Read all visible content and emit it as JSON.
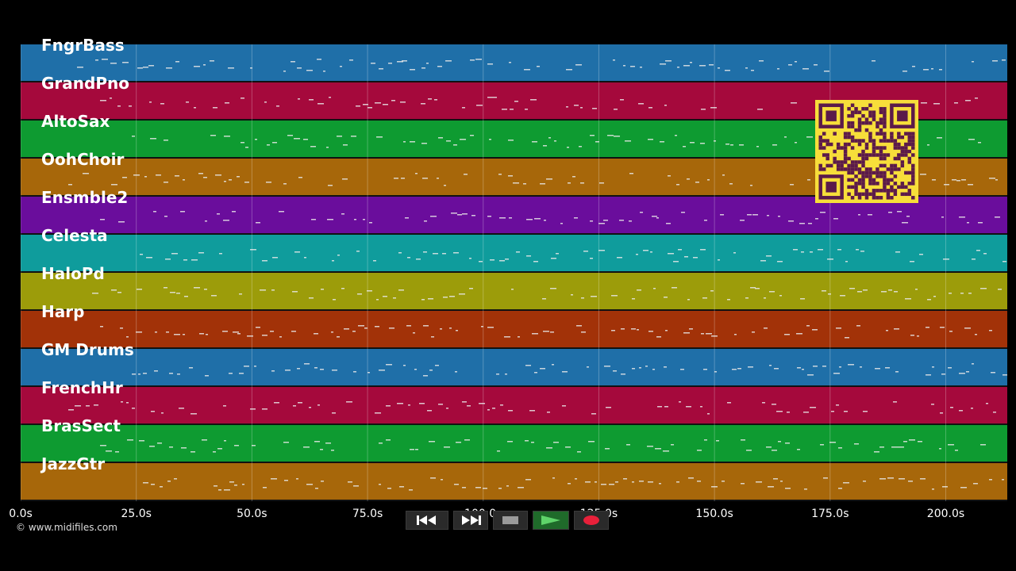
{
  "colors": {
    "background": "#000000",
    "lanes": [
      "#1f6fa8",
      "#a5093c",
      "#0e9b31",
      "#a7670a",
      "#6a0d9c",
      "#0f9c9c",
      "#9c9c0a",
      "#a23208",
      "#1f6fa8",
      "#a5093c",
      "#0e9b31",
      "#a7670a"
    ],
    "note": "#e8e8e8",
    "qr_bg": "#f7de3a",
    "qr_fg": "#5b1a4a"
  },
  "tracks": [
    {
      "name": "FngrBass"
    },
    {
      "name": "GrandPno"
    },
    {
      "name": "AltoSax"
    },
    {
      "name": "OohChoir"
    },
    {
      "name": "Ensmble2"
    },
    {
      "name": "Celesta"
    },
    {
      "name": "HaloPd"
    },
    {
      "name": "Harp"
    },
    {
      "name": "GM Drums"
    },
    {
      "name": "FrenchHr"
    },
    {
      "name": "BrasSect"
    },
    {
      "name": "JazzGtr"
    }
  ],
  "timeline": {
    "ticks": [
      "0.0s",
      "25.0s",
      "50.0s",
      "75.0s",
      "100.0s",
      "125.0s",
      "150.0s",
      "175.0s",
      "200.0s"
    ],
    "tick_seconds": [
      0,
      25,
      50,
      75,
      100,
      125,
      150,
      175,
      200
    ],
    "max_seconds": 213.3
  },
  "copyright": "© www.midifiles.com",
  "transport": {
    "rewind_icon": "rewind-icon",
    "fastforward_icon": "fast-forward-icon",
    "stop_icon": "stop-icon",
    "play_icon": "play-icon",
    "record_icon": "record-icon"
  }
}
